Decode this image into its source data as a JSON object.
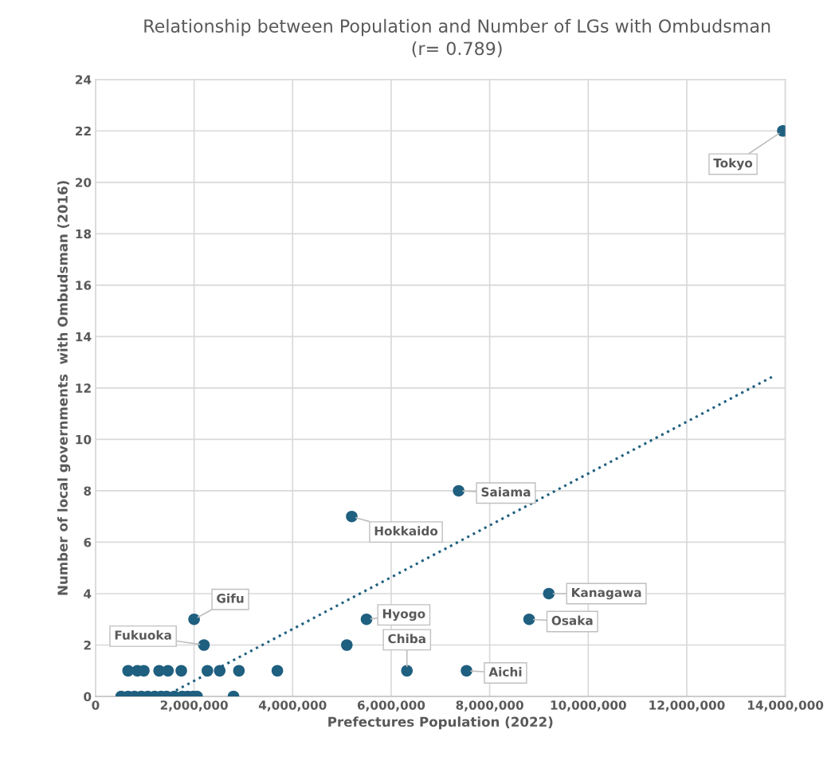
{
  "chart_data": {
    "type": "scatter",
    "title": "Relationship between Population and Number of LGs with Ombudsman\n(r= 0.789)",
    "xlabel": "Prefectures Population (2022)",
    "ylabel": "Number of local governments  with Ombudsman (2016)",
    "series": [
      {
        "color": "#1f5f7f",
        "marker": "circle",
        "x": [
          520000,
          660000,
          790000,
          930000,
          1060000,
          1200000,
          1330000,
          1440000,
          1600000,
          1760000,
          1870000,
          1980000,
          2060000,
          2800000,
          660000,
          850000,
          980000,
          1290000,
          1470000,
          1740000,
          2270000,
          2520000,
          2910000,
          3690000,
          5100000,
          2000000,
          2200000,
          5200000,
          7370000,
          5500000,
          6320000,
          7530000,
          8800000,
          9200000,
          13950000
        ],
        "values": [
          0,
          0,
          0,
          0,
          0,
          0,
          0,
          0,
          0,
          0,
          0,
          0,
          0,
          0,
          1,
          1,
          1,
          1,
          1,
          1,
          1,
          1,
          1,
          1,
          2,
          3,
          2,
          7,
          8,
          3,
          1,
          1,
          3,
          4,
          22
        ]
      },
      {
        "type": "line",
        "color": "#1f5f7f",
        "line_style": "dotted",
        "x": [
          1400000,
          13800000
        ],
        "values": [
          0,
          12.5
        ]
      }
    ],
    "annotations": [
      {
        "text": "Gifu",
        "x": 2000000,
        "y": 3
      },
      {
        "text": "Fukuoka",
        "x": 2200000,
        "y": 2
      },
      {
        "text": "Hokkaido",
        "x": 5200000,
        "y": 7
      },
      {
        "text": "Saiama",
        "x": 7370000,
        "y": 8
      },
      {
        "text": "Hyogo",
        "x": 5500000,
        "y": 3
      },
      {
        "text": "Chiba",
        "x": 6320000,
        "y": 1
      },
      {
        "text": "Aichi",
        "x": 7530000,
        "y": 1
      },
      {
        "text": "Osaka",
        "x": 8800000,
        "y": 3
      },
      {
        "text": "Kanagawa",
        "x": 9200000,
        "y": 4
      },
      {
        "text": "Tokyo",
        "x": 13950000,
        "y": 22
      }
    ],
    "xlim": [
      0,
      14000000
    ],
    "xticks": [
      {
        "value": 0,
        "label": "0"
      },
      {
        "value": 2000000,
        "label": "2,000,000"
      },
      {
        "value": 4000000,
        "label": "4,000,000"
      },
      {
        "value": 6000000,
        "label": "6,000,000"
      },
      {
        "value": 8000000,
        "label": "8,000,000"
      },
      {
        "value": 10000000,
        "label": "10,000,000"
      },
      {
        "value": 12000000,
        "label": "12,000,000"
      },
      {
        "value": 14000000,
        "label": "14,000,000"
      }
    ],
    "ylim": [
      0,
      24
    ],
    "yticks": [
      0,
      2,
      4,
      6,
      8,
      10,
      12,
      14,
      16,
      18,
      20,
      22,
      24
    ],
    "grid": true,
    "legend": false
  }
}
